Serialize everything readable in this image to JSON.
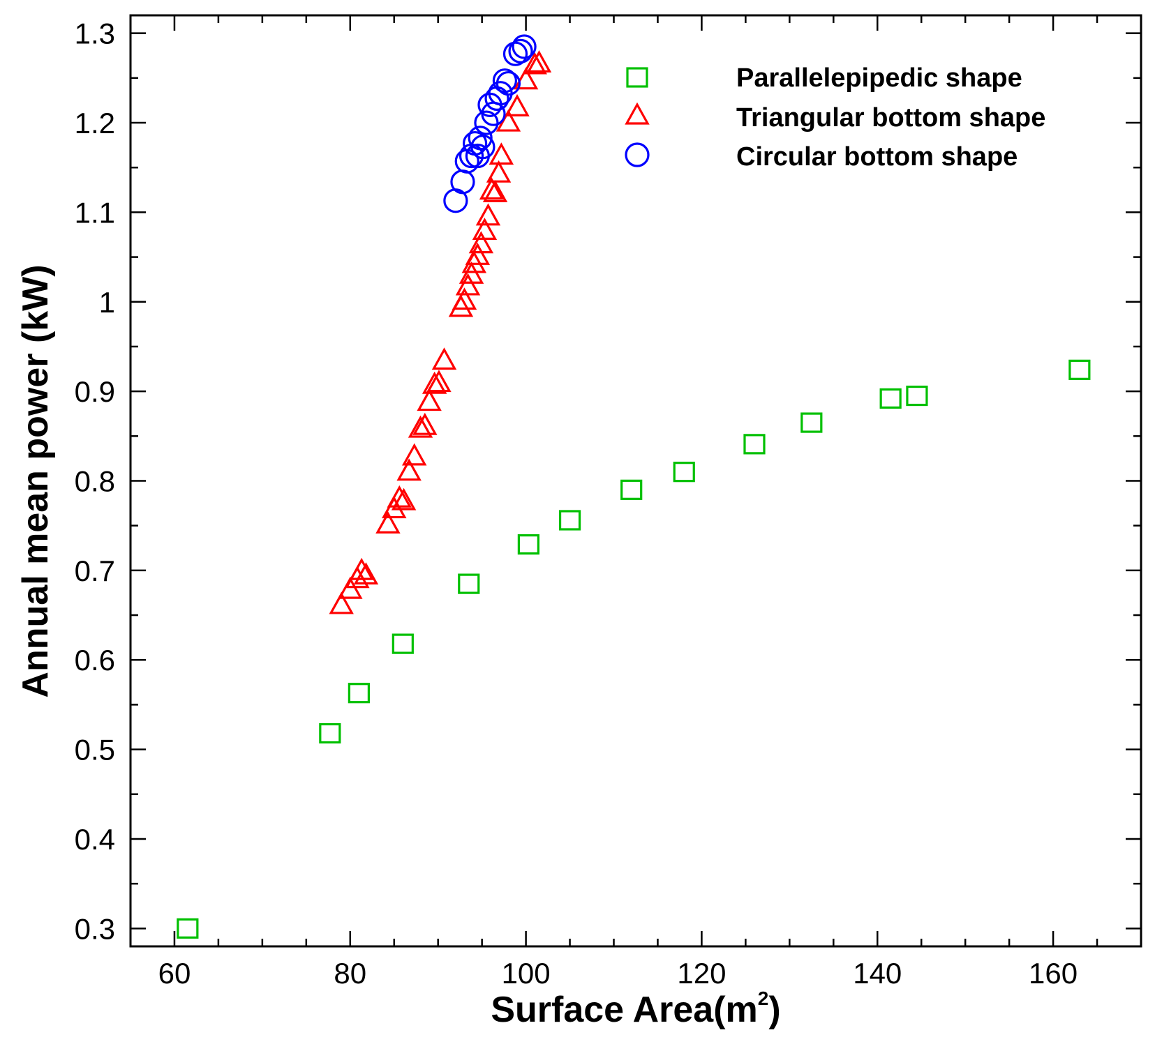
{
  "chart_data": {
    "type": "scatter",
    "title": "",
    "xlabel": "Surface Area(m",
    "xlabel_superscript": "2",
    "xlabel_close": ")",
    "ylabel": "Annual mean power (kW)",
    "xlim": [
      55,
      170
    ],
    "ylim": [
      0.28,
      1.32
    ],
    "xticks": [
      60,
      80,
      100,
      120,
      140,
      160
    ],
    "xtick_labels": [
      "60",
      "80",
      "100",
      "120",
      "140",
      "160"
    ],
    "yticks": [
      0.3,
      0.4,
      0.5,
      0.6,
      0.7,
      0.8,
      0.9,
      1.0,
      1.1,
      1.2,
      1.3
    ],
    "ytick_labels": [
      "0.3",
      "0.4",
      "0.5",
      "0.6",
      "0.7",
      "0.8",
      "0.9",
      "1",
      "1.1",
      "1.2",
      "1.3"
    ],
    "legend_position": "top-right",
    "series": [
      {
        "name": "Parallelepipedic shape",
        "marker": "square",
        "color": "#00c000",
        "x": [
          61.5,
          77.7,
          81.0,
          86.0,
          93.5,
          100.3,
          105.0,
          112.0,
          118.0,
          126.0,
          132.5,
          141.5,
          144.5,
          163.0
        ],
        "y": [
          0.3,
          0.518,
          0.563,
          0.618,
          0.685,
          0.729,
          0.756,
          0.79,
          0.81,
          0.841,
          0.865,
          0.892,
          0.895,
          0.924
        ]
      },
      {
        "name": "Triangular bottom shape",
        "marker": "triangle",
        "color": "#ff0000",
        "x": [
          79.0,
          80.0,
          80.8,
          81.3,
          81.8,
          84.3,
          85.0,
          85.6,
          86.1,
          86.7,
          87.3,
          88.0,
          88.5,
          89.0,
          89.6,
          90.1,
          90.7,
          92.6,
          93.0,
          93.4,
          93.8,
          94.1,
          94.5,
          94.9,
          95.3,
          95.7,
          96.1,
          96.5,
          96.9,
          97.2,
          98.0,
          99.0,
          100.0,
          101.0,
          101.5
        ],
        "y": [
          0.661,
          0.678,
          0.69,
          0.699,
          0.694,
          0.751,
          0.768,
          0.78,
          0.777,
          0.81,
          0.827,
          0.858,
          0.861,
          0.888,
          0.907,
          0.909,
          0.934,
          0.993,
          1.001,
          1.017,
          1.03,
          1.042,
          1.051,
          1.064,
          1.079,
          1.095,
          1.124,
          1.121,
          1.143,
          1.163,
          1.2,
          1.217,
          1.247,
          1.264,
          1.266
        ]
      },
      {
        "name": "Circular bottom shape",
        "marker": "circle",
        "color": "#0000ff",
        "x": [
          92.0,
          92.8,
          93.3,
          93.8,
          94.2,
          94.5,
          94.8,
          95.1,
          95.5,
          95.9,
          96.3,
          96.7,
          97.1,
          97.6,
          98.0,
          98.8,
          99.4,
          99.8
        ],
        "y": [
          1.113,
          1.134,
          1.157,
          1.163,
          1.177,
          1.163,
          1.183,
          1.173,
          1.2,
          1.22,
          1.21,
          1.227,
          1.233,
          1.247,
          1.244,
          1.277,
          1.28,
          1.285
        ]
      }
    ]
  }
}
